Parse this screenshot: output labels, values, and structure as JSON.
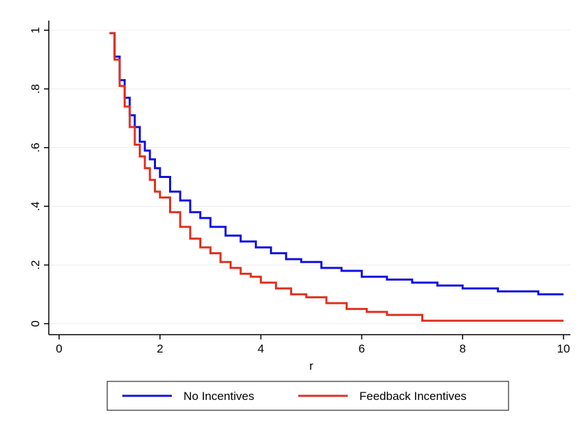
{
  "chart_data": {
    "type": "line",
    "xlabel": "r",
    "ylabel": "",
    "xlim": [
      0,
      10
    ],
    "ylim": [
      0,
      1
    ],
    "xticks": [
      "0",
      "2",
      "4",
      "6",
      "8",
      "10"
    ],
    "yticks": [
      "0",
      ".2",
      ".4",
      ".6",
      ".8",
      "1"
    ],
    "grid": "horizontal",
    "legend_position": "bottom",
    "series": [
      {
        "name": "No Incentives",
        "color": "#1010e0",
        "shape": "step",
        "x": [
          1.0,
          1.1,
          1.2,
          1.3,
          1.4,
          1.5,
          1.6,
          1.7,
          1.8,
          1.9,
          2.0,
          2.2,
          2.4,
          2.6,
          2.8,
          3.0,
          3.3,
          3.6,
          3.9,
          4.2,
          4.5,
          4.8,
          5.2,
          5.6,
          6.0,
          6.5,
          7.0,
          7.5,
          8.0,
          8.7,
          9.5,
          10.0
        ],
        "y": [
          0.99,
          0.91,
          0.83,
          0.77,
          0.71,
          0.67,
          0.62,
          0.59,
          0.56,
          0.53,
          0.5,
          0.45,
          0.42,
          0.38,
          0.36,
          0.33,
          0.3,
          0.28,
          0.26,
          0.24,
          0.22,
          0.21,
          0.19,
          0.18,
          0.16,
          0.15,
          0.14,
          0.13,
          0.12,
          0.11,
          0.1,
          0.1
        ]
      },
      {
        "name": "Feedback Incentives",
        "color": "#e03020",
        "shape": "step",
        "x": [
          1.0,
          1.1,
          1.2,
          1.3,
          1.4,
          1.5,
          1.6,
          1.7,
          1.8,
          1.9,
          2.0,
          2.2,
          2.4,
          2.6,
          2.8,
          3.0,
          3.2,
          3.4,
          3.6,
          3.8,
          4.0,
          4.3,
          4.6,
          4.9,
          5.3,
          5.7,
          6.1,
          6.5,
          7.2,
          10.0
        ],
        "y": [
          0.99,
          0.9,
          0.81,
          0.74,
          0.67,
          0.61,
          0.57,
          0.53,
          0.49,
          0.45,
          0.43,
          0.38,
          0.33,
          0.29,
          0.26,
          0.24,
          0.21,
          0.19,
          0.17,
          0.16,
          0.14,
          0.12,
          0.1,
          0.09,
          0.07,
          0.05,
          0.04,
          0.03,
          0.01,
          0.01
        ]
      }
    ]
  }
}
